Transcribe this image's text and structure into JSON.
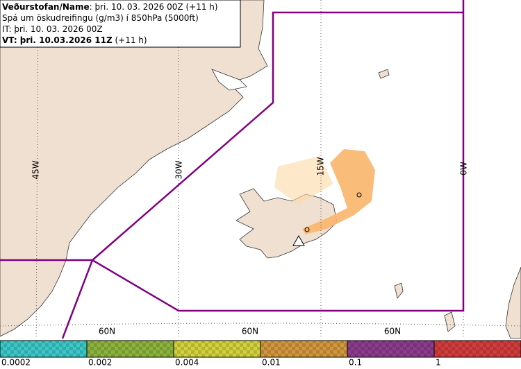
{
  "header": {
    "lines": [
      {
        "bold": "Veðurstofan/Name",
        "text": ": þri. 10. 03. 2026 00Z (+11 h)"
      },
      {
        "bold": "",
        "text": "Spá um öskudreifingu (g/m3) í 850hPa (5000ft)"
      },
      {
        "bold": "",
        "text": "IT: þri. 10. 03. 2026 00Z"
      },
      {
        "bold": "VT: þri. 10.03.2026 11Z",
        "text": " (+11 h)"
      }
    ]
  },
  "map": {
    "meridian_labels": [
      "45W",
      "30W",
      "15W",
      "0W"
    ],
    "parallel_labels": [
      "60N",
      "60N",
      "60N"
    ]
  },
  "legend": {
    "labels": [
      "0.0002",
      "0.002",
      "0.004",
      "0.01",
      "0.1",
      "1"
    ],
    "colors": [
      "#3cc8c8",
      "#8cb43c",
      "#d2d23c",
      "#d2963c",
      "#8c3c8c",
      "#d23c3c"
    ]
  }
}
